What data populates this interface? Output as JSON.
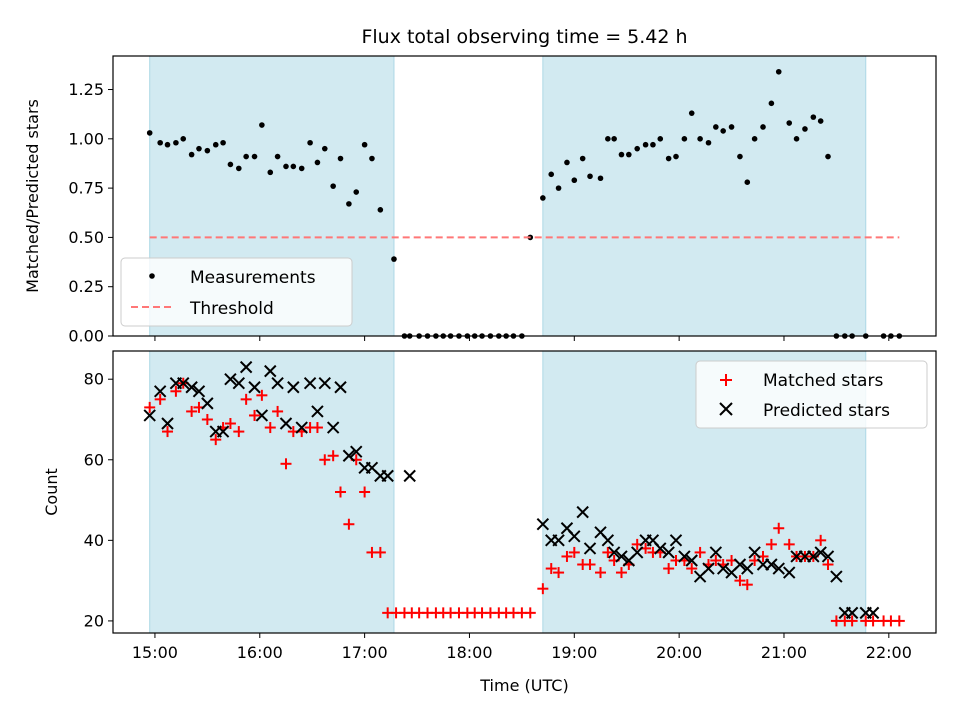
{
  "chart_data": [
    {
      "type": "scatter",
      "title": "Flux total observing time = 5.42 h",
      "xlabel": "",
      "ylabel": "Matched/Predicted stars",
      "xlim": [
        14.6,
        22.45
      ],
      "ylim": [
        0,
        1.42
      ],
      "yticks": [
        0,
        0.25,
        0.5,
        0.75,
        1.0,
        1.25
      ],
      "ytick_labels": [
        "0.00",
        "0.25",
        "0.50",
        "0.75",
        "1.00",
        "1.25"
      ],
      "shaded_intervals": [
        [
          14.95,
          17.28
        ],
        [
          18.7,
          21.78
        ]
      ],
      "shade_color": "#add8e6",
      "series": [
        {
          "name": "Measurements",
          "kind": "dots",
          "color": "#000000",
          "x": [
            14.95,
            15.05,
            15.12,
            15.2,
            15.27,
            15.35,
            15.42,
            15.5,
            15.58,
            15.65,
            15.72,
            15.8,
            15.87,
            15.95,
            16.02,
            16.1,
            16.17,
            16.25,
            16.32,
            16.4,
            16.48,
            16.55,
            16.62,
            16.7,
            16.77,
            16.85,
            16.92,
            17.0,
            17.07,
            17.15,
            17.28,
            17.43,
            17.38,
            17.52,
            17.6,
            17.68,
            17.75,
            17.82,
            17.9,
            17.98,
            18.05,
            18.12,
            18.2,
            18.28,
            18.35,
            18.42,
            18.5,
            18.58,
            18.7,
            18.78,
            18.85,
            18.93,
            19.0,
            19.08,
            19.15,
            19.25,
            19.32,
            19.38,
            19.45,
            19.52,
            19.6,
            19.68,
            19.75,
            19.82,
            19.9,
            19.97,
            20.05,
            20.12,
            20.2,
            20.28,
            20.35,
            20.42,
            20.5,
            20.58,
            20.65,
            20.72,
            20.8,
            20.88,
            20.95,
            21.05,
            21.12,
            21.2,
            21.28,
            21.35,
            21.42,
            21.5,
            21.58,
            21.65,
            21.78,
            21.95,
            22.02,
            22.1
          ],
          "y": [
            1.03,
            0.98,
            0.97,
            0.98,
            1.0,
            0.92,
            0.95,
            0.94,
            0.97,
            0.98,
            0.87,
            0.85,
            0.91,
            0.91,
            1.07,
            0.83,
            0.91,
            0.86,
            0.86,
            0.85,
            0.98,
            0.88,
            0.95,
            0.76,
            0.9,
            0.67,
            0.73,
            0.97,
            0.9,
            0.64,
            0.39,
            0.0,
            0.0,
            0.0,
            0.0,
            0.0,
            0.0,
            0.0,
            0.0,
            0.0,
            0.0,
            0.0,
            0.0,
            0.0,
            0.0,
            0.0,
            0.0,
            0.5,
            0.7,
            0.82,
            0.75,
            0.88,
            0.79,
            0.9,
            0.81,
            0.8,
            1.0,
            1.0,
            0.92,
            0.92,
            0.95,
            0.97,
            0.97,
            1.0,
            0.9,
            0.91,
            1.0,
            1.13,
            1.0,
            0.98,
            1.06,
            1.04,
            1.06,
            0.91,
            0.78,
            1.0,
            1.06,
            1.18,
            1.34,
            1.08,
            1.0,
            1.05,
            1.11,
            1.09,
            0.91,
            0.0,
            0.0,
            0.0,
            0.0,
            0.0,
            0.0,
            0.0
          ]
        },
        {
          "name": "Threshold",
          "kind": "dashed-line",
          "color": "#ff7777",
          "x": [
            14.95,
            22.1
          ],
          "y": [
            0.5,
            0.5
          ]
        }
      ],
      "legend": "lower-left"
    },
    {
      "type": "scatter",
      "title": "",
      "xlabel": "Time (UTC)",
      "ylabel": "Count",
      "xlim": [
        14.6,
        22.45
      ],
      "ylim": [
        17,
        87
      ],
      "xticks": [
        15,
        16,
        17,
        18,
        19,
        20,
        21,
        22
      ],
      "xtick_labels": [
        "15:00",
        "16:00",
        "17:00",
        "18:00",
        "19:00",
        "20:00",
        "21:00",
        "22:00"
      ],
      "yticks": [
        20,
        40,
        60,
        80
      ],
      "ytick_labels": [
        "20",
        "40",
        "60",
        "80"
      ],
      "shaded_intervals": [
        [
          14.95,
          17.28
        ],
        [
          18.7,
          21.78
        ]
      ],
      "shade_color": "#add8e6",
      "series": [
        {
          "name": "Matched stars",
          "kind": "plus",
          "color": "#ff0000",
          "x": [
            14.95,
            15.05,
            15.12,
            15.2,
            15.27,
            15.35,
            15.42,
            15.5,
            15.58,
            15.65,
            15.72,
            15.8,
            15.87,
            15.95,
            16.02,
            16.1,
            16.17,
            16.25,
            16.32,
            16.4,
            16.48,
            16.55,
            16.62,
            16.7,
            16.77,
            16.85,
            16.92,
            17.0,
            17.07,
            17.15,
            17.22,
            17.3,
            17.38,
            17.45,
            17.52,
            17.6,
            17.68,
            17.75,
            17.82,
            17.9,
            17.98,
            18.05,
            18.12,
            18.2,
            18.28,
            18.35,
            18.42,
            18.5,
            18.58,
            18.7,
            18.78,
            18.85,
            18.93,
            19.0,
            19.08,
            19.15,
            19.25,
            19.32,
            19.38,
            19.45,
            19.52,
            19.6,
            19.68,
            19.75,
            19.82,
            19.9,
            19.97,
            20.05,
            20.12,
            20.2,
            20.28,
            20.35,
            20.42,
            20.5,
            20.58,
            20.65,
            20.72,
            20.8,
            20.88,
            20.95,
            21.05,
            21.12,
            21.2,
            21.28,
            21.35,
            21.42,
            21.5,
            21.58,
            21.65,
            21.78,
            21.85,
            21.95,
            22.02,
            22.1
          ],
          "y": [
            73,
            75,
            67,
            77,
            79,
            72,
            73,
            70,
            65,
            68,
            69,
            67,
            75,
            71,
            76,
            68,
            72,
            59,
            67,
            67,
            68,
            68,
            60,
            61,
            52,
            44,
            60,
            52,
            37,
            37,
            22,
            22,
            22,
            22,
            22,
            22,
            22,
            22,
            22,
            22,
            22,
            22,
            22,
            22,
            22,
            22,
            22,
            22,
            22,
            28,
            33,
            32,
            36,
            37,
            34,
            34,
            32,
            37,
            35,
            32,
            34,
            39,
            38,
            37,
            37,
            33,
            35,
            35,
            33,
            37,
            34,
            35,
            34,
            35,
            30,
            29,
            35,
            36,
            39,
            43,
            39,
            36,
            36,
            36,
            40,
            34,
            20,
            20,
            20,
            20,
            20,
            20,
            20,
            20
          ]
        },
        {
          "name": "Predicted stars",
          "kind": "x",
          "color": "#000000",
          "x": [
            14.95,
            15.05,
            15.12,
            15.2,
            15.27,
            15.35,
            15.42,
            15.5,
            15.58,
            15.65,
            15.72,
            15.8,
            15.87,
            15.95,
            16.02,
            16.1,
            16.17,
            16.25,
            16.32,
            16.4,
            16.48,
            16.55,
            16.62,
            16.7,
            16.77,
            16.85,
            16.92,
            17.0,
            17.07,
            17.15,
            17.22,
            17.43,
            18.7,
            18.78,
            18.85,
            18.93,
            19.0,
            19.08,
            19.15,
            19.25,
            19.32,
            19.38,
            19.45,
            19.52,
            19.6,
            19.68,
            19.75,
            19.82,
            19.9,
            19.97,
            20.05,
            20.12,
            20.2,
            20.28,
            20.35,
            20.42,
            20.5,
            20.58,
            20.65,
            20.72,
            20.8,
            20.88,
            20.95,
            21.05,
            21.12,
            21.2,
            21.28,
            21.35,
            21.42,
            21.5,
            21.58,
            21.65,
            21.78,
            21.85
          ],
          "y": [
            71,
            77,
            69,
            79,
            79,
            78,
            77,
            74,
            67,
            67,
            80,
            79,
            83,
            78,
            71,
            82,
            79,
            69,
            78,
            68,
            79,
            72,
            79,
            68,
            78,
            61,
            62,
            58,
            58,
            56,
            56,
            56,
            44,
            40,
            40,
            43,
            41,
            47,
            38,
            42,
            40,
            37,
            36,
            35,
            37,
            40,
            40,
            38,
            37,
            40,
            36,
            35,
            31,
            33,
            37,
            33,
            32,
            34,
            33,
            37,
            34,
            34,
            33,
            32,
            36,
            36,
            36,
            37,
            36,
            31,
            22,
            22,
            22,
            22
          ]
        }
      ],
      "legend": "upper-right"
    }
  ]
}
